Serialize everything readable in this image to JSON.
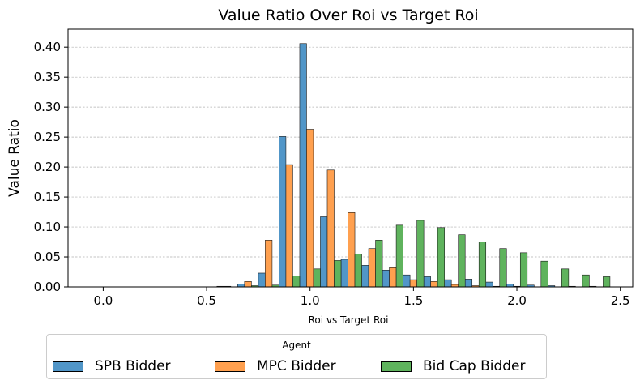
{
  "chart_data": {
    "type": "bar",
    "title": "Value Ratio Over Roi vs Target Roi",
    "xlabel": "Roi vs Target Roi",
    "ylabel": "Value Ratio",
    "xlim": [
      -0.17,
      2.56
    ],
    "ylim": [
      0,
      0.43
    ],
    "xticks": [
      0.0,
      0.5,
      1.0,
      1.5,
      2.0,
      2.5
    ],
    "xtick_labels": [
      "0.0",
      "0.5",
      "1.0",
      "1.5",
      "2.0",
      "2.5"
    ],
    "yticks": [
      0.0,
      0.05,
      0.1,
      0.15,
      0.2,
      0.25,
      0.3,
      0.35,
      0.4
    ],
    "ytick_labels": [
      "0.00",
      "0.05",
      "0.10",
      "0.15",
      "0.20",
      "0.25",
      "0.30",
      "0.35",
      "0.40"
    ],
    "grid": true,
    "bin_width": 0.1,
    "x": [
      0.6,
      0.7,
      0.8,
      0.9,
      1.0,
      1.1,
      1.2,
      1.3,
      1.4,
      1.5,
      1.6,
      1.7,
      1.8,
      1.9,
      2.0,
      2.1,
      2.2,
      2.3,
      2.4
    ],
    "series": [
      {
        "name": "SPB Bidder",
        "color": "#5196c8",
        "values": [
          0.001,
          0.005,
          0.023,
          0.251,
          0.406,
          0.117,
          0.046,
          0.036,
          0.028,
          0.02,
          0.017,
          0.012,
          0.013,
          0.008,
          0.005,
          0.003,
          0.002,
          0.001,
          0.001
        ]
      },
      {
        "name": "MPC Bidder",
        "color": "#ffa04f",
        "values": [
          0.001,
          0.009,
          0.078,
          0.204,
          0.263,
          0.195,
          0.124,
          0.064,
          0.032,
          0.012,
          0.009,
          0.004,
          0.002,
          0.001,
          0.001,
          0.0,
          0.0,
          0.0,
          0.0
        ]
      },
      {
        "name": "Bid Cap Bidder",
        "color": "#5fb35d",
        "values": [
          0.0,
          0.002,
          0.003,
          0.018,
          0.03,
          0.044,
          0.055,
          0.078,
          0.103,
          0.111,
          0.099,
          0.087,
          0.075,
          0.064,
          0.057,
          0.043,
          0.03,
          0.02,
          0.017
        ]
      }
    ],
    "legend": {
      "title": "Agent",
      "position": "bottom-center"
    }
  }
}
